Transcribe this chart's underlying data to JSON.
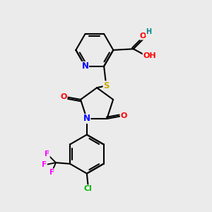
{
  "background_color": "#ebebeb",
  "atom_colors": {
    "N": "#0000ff",
    "S": "#ccaa00",
    "O": "#ff0000",
    "Cl": "#00bb00",
    "F": "#ff00ff",
    "C": "#000000",
    "H": "#008888"
  }
}
